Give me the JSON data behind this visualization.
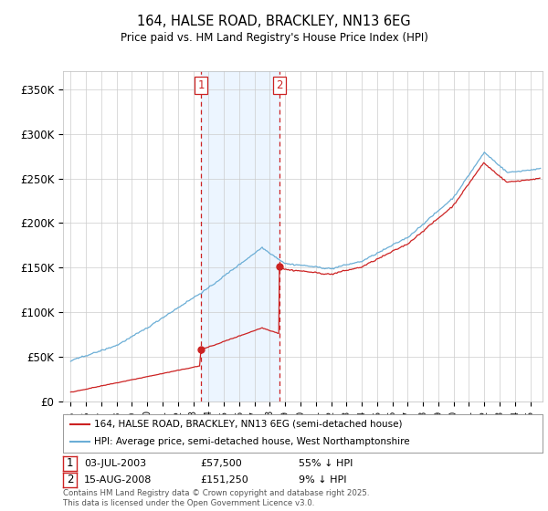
{
  "title": "164, HALSE ROAD, BRACKLEY, NN13 6EG",
  "subtitle": "Price paid vs. HM Land Registry's House Price Index (HPI)",
  "legend_line1": "164, HALSE ROAD, BRACKLEY, NN13 6EG (semi-detached house)",
  "legend_line2": "HPI: Average price, semi-detached house, West Northamptonshire",
  "footer": "Contains HM Land Registry data © Crown copyright and database right 2025.\nThis data is licensed under the Open Government Licence v3.0.",
  "sale1_date": "03-JUL-2003",
  "sale1_price": "£57,500",
  "sale1_hpi": "55% ↓ HPI",
  "sale1_year": 2003.5,
  "sale1_value": 57500,
  "sale2_date": "15-AUG-2008",
  "sale2_price": "£151,250",
  "sale2_hpi": "9% ↓ HPI",
  "sale2_year": 2008.625,
  "sale2_value": 151250,
  "hpi_color": "#6baed6",
  "price_color": "#cc2222",
  "shade_color": "#ddeeff",
  "dashed_color": "#cc2222",
  "ylim_max": 370000,
  "ylim_min": 0,
  "yticks": [
    0,
    50000,
    100000,
    150000,
    200000,
    250000,
    300000,
    350000
  ],
  "ytick_labels": [
    "£0",
    "£50K",
    "£100K",
    "£150K",
    "£200K",
    "£250K",
    "£300K",
    "£350K"
  ],
  "xmin": 1994.5,
  "xmax": 2025.8,
  "background": "white"
}
